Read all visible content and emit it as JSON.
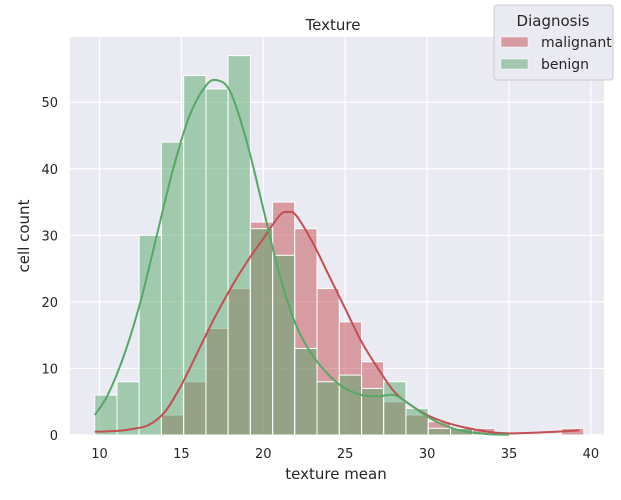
{
  "chart_data": {
    "type": "histogram",
    "title": "Texture",
    "xlabel": "texture mean",
    "ylabel": "cell count",
    "xlim": [
      8.2,
      40.8
    ],
    "ylim": [
      0,
      59.8
    ],
    "xticks": [
      10,
      15,
      20,
      25,
      30,
      35,
      40
    ],
    "yticks": [
      0,
      10,
      20,
      30,
      40,
      50
    ],
    "grid": true,
    "bin_edges": [
      9.71,
      11.07,
      12.42,
      13.78,
      15.14,
      16.5,
      17.85,
      19.21,
      20.57,
      21.92,
      23.28,
      24.64,
      26.0,
      27.35,
      28.71,
      30.07,
      31.43,
      32.78,
      34.14,
      35.5,
      36.85,
      38.21,
      39.57
    ],
    "legend": {
      "title": "Diagnosis",
      "position": "top-right",
      "entries": [
        "malignant",
        "benign"
      ]
    },
    "series": [
      {
        "name": "malignant",
        "color": "#c44e52",
        "counts": [
          0,
          0,
          0,
          3,
          8,
          16,
          22,
          32,
          35,
          31,
          22,
          17,
          11,
          5,
          3,
          2,
          1,
          1,
          0,
          0,
          0,
          1
        ],
        "kde": [
          [
            9.71,
            0.5
          ],
          [
            11,
            0.6
          ],
          [
            12,
            0.9
          ],
          [
            13,
            1.5
          ],
          [
            14,
            3.5
          ],
          [
            15,
            7.5
          ],
          [
            16,
            12.5
          ],
          [
            17,
            17.5
          ],
          [
            18,
            22
          ],
          [
            19,
            26
          ],
          [
            20,
            29.5
          ],
          [
            21,
            33
          ],
          [
            21.5,
            33.5
          ],
          [
            22,
            33
          ],
          [
            23,
            29
          ],
          [
            24,
            24
          ],
          [
            25,
            19
          ],
          [
            26,
            14
          ],
          [
            27,
            10
          ],
          [
            28,
            6.5
          ],
          [
            29,
            4.5
          ],
          [
            30,
            3
          ],
          [
            31,
            2
          ],
          [
            32,
            1.3
          ],
          [
            33,
            0.8
          ],
          [
            34,
            0.4
          ],
          [
            35,
            0.25
          ],
          [
            36,
            0.3
          ],
          [
            37,
            0.4
          ],
          [
            38,
            0.5
          ],
          [
            39.3,
            0.7
          ]
        ]
      },
      {
        "name": "benign",
        "color": "#55a868",
        "counts": [
          6,
          8,
          30,
          44,
          54,
          52,
          57,
          31,
          27,
          13,
          8,
          9,
          7,
          8,
          4,
          1,
          1,
          0,
          0,
          0,
          0,
          0
        ],
        "kde": [
          [
            9.71,
            3
          ],
          [
            10.5,
            6
          ],
          [
            11.5,
            12
          ],
          [
            12.5,
            20
          ],
          [
            13.5,
            30
          ],
          [
            14.5,
            40
          ],
          [
            15.5,
            48
          ],
          [
            16.5,
            52.5
          ],
          [
            17.2,
            53.3
          ],
          [
            18,
            51.5
          ],
          [
            19,
            44
          ],
          [
            20,
            34
          ],
          [
            21,
            24
          ],
          [
            22,
            16.5
          ],
          [
            23,
            12
          ],
          [
            24,
            9
          ],
          [
            25,
            7
          ],
          [
            26,
            6
          ],
          [
            27,
            5.8
          ],
          [
            28,
            6
          ],
          [
            29,
            4.5
          ],
          [
            30,
            2.8
          ],
          [
            31,
            1.5
          ],
          [
            32,
            0.7
          ],
          [
            33,
            0.3
          ],
          [
            34,
            0.1
          ],
          [
            35,
            0.05
          ]
        ]
      }
    ]
  }
}
